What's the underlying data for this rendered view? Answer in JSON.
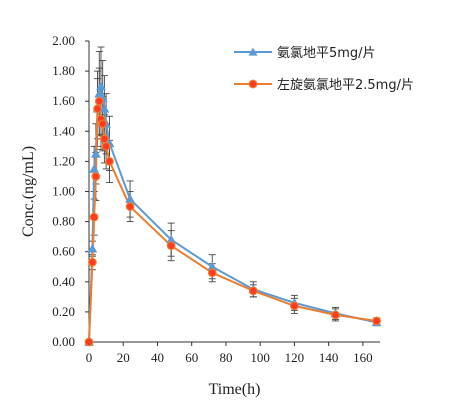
{
  "chart_data": {
    "type": "line",
    "xlabel": "Time(h)",
    "ylabel": "Conc.(ng/mL)",
    "xlim": [
      0,
      170
    ],
    "ylim": [
      0,
      2.0
    ],
    "x_ticks": [
      "0",
      "20",
      "40",
      "60",
      "80",
      "100",
      "120",
      "140",
      "160"
    ],
    "y_ticks": [
      "0.00",
      "0.20",
      "0.40",
      "0.60",
      "0.80",
      "1.00",
      "1.20",
      "1.40",
      "1.60",
      "1.80",
      "2.00"
    ],
    "grid": false,
    "legend_position": "top-right",
    "series": [
      {
        "name": "氨氯地平5mg/片",
        "color": "#5b9bd5",
        "marker": "triangle",
        "x": [
          0,
          2,
          3,
          4,
          5,
          6,
          7,
          8,
          9,
          10,
          12,
          24,
          48,
          72,
          96,
          120,
          144,
          168
        ],
        "y": [
          0,
          0.62,
          1.15,
          1.25,
          1.55,
          1.65,
          1.7,
          1.62,
          1.55,
          1.45,
          1.32,
          0.95,
          0.68,
          0.5,
          0.35,
          0.26,
          0.19,
          0.13
        ],
        "error": [
          0,
          0.05,
          0.15,
          0.2,
          0.25,
          0.28,
          0.26,
          0.25,
          0.22,
          0.2,
          0.18,
          0.12,
          0.11,
          0.08,
          0.05,
          0.05,
          0.04,
          0.02
        ]
      },
      {
        "name": "左旋氨氯地平2.5mg/片",
        "color": "#ed7d31",
        "marker": "circle",
        "x": [
          0,
          2,
          3,
          4,
          5,
          6,
          7,
          8,
          9,
          10,
          12,
          24,
          48,
          72,
          96,
          120,
          144,
          168
        ],
        "y": [
          0,
          0.53,
          0.83,
          1.1,
          1.55,
          1.6,
          1.48,
          1.45,
          1.35,
          1.3,
          1.2,
          0.9,
          0.64,
          0.46,
          0.34,
          0.24,
          0.18,
          0.14
        ],
        "error": [
          0,
          0.05,
          0.12,
          0.16,
          0.2,
          0.22,
          0.2,
          0.18,
          0.16,
          0.15,
          0.14,
          0.1,
          0.1,
          0.06,
          0.04,
          0.05,
          0.04,
          0.02
        ]
      }
    ]
  }
}
